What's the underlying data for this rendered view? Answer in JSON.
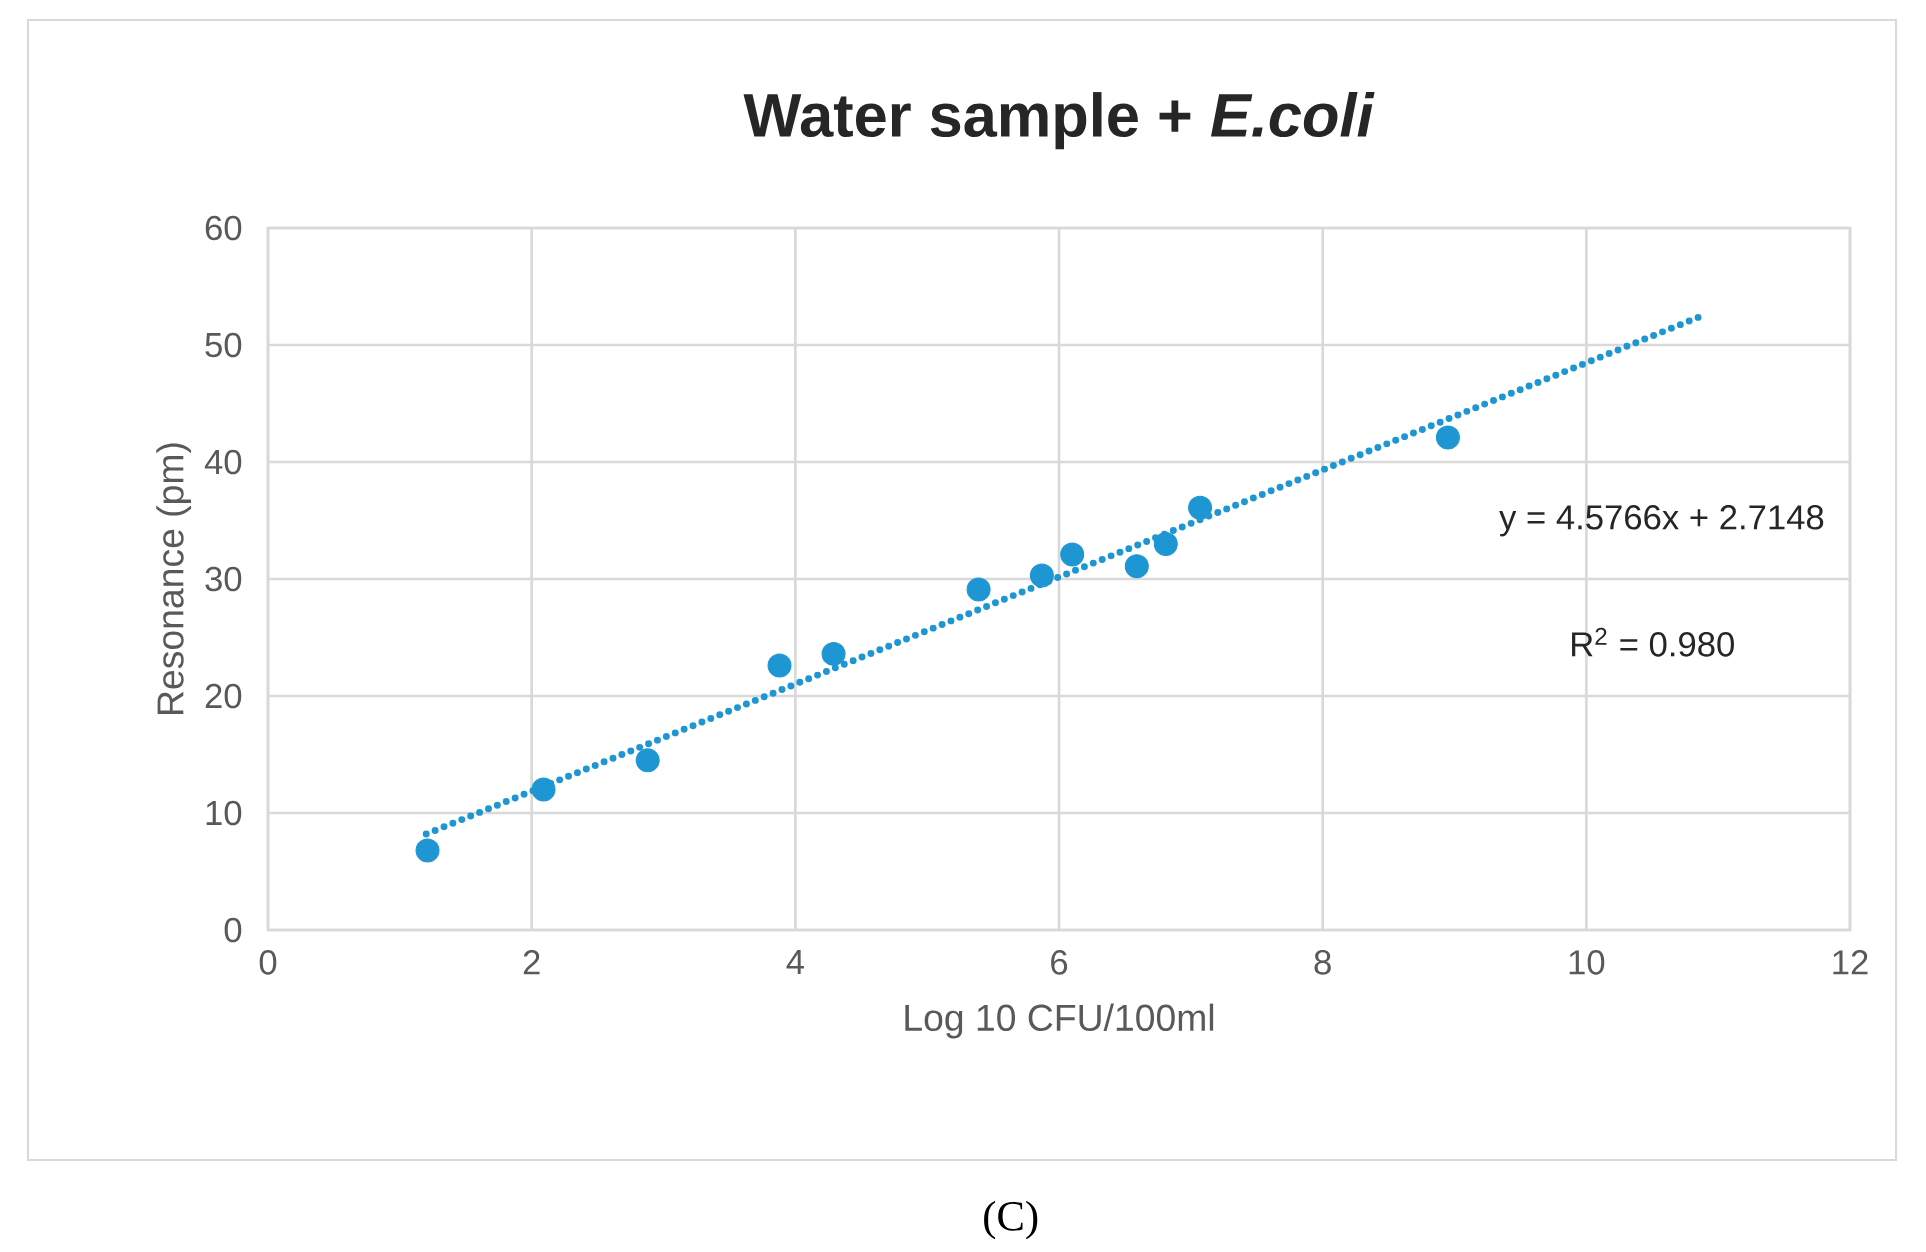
{
  "chart_data": {
    "type": "scatter",
    "title": "Water sample + *E.coli*",
    "xlabel": "Log 10 CFU/100ml",
    "ylabel": "Resonance (pm)",
    "xlim": [
      0,
      12
    ],
    "xticks": [
      0,
      2,
      4,
      6,
      8,
      10,
      12
    ],
    "ylim": [
      0,
      60
    ],
    "yticks": [
      0,
      10,
      20,
      30,
      40,
      50,
      60
    ],
    "grid": true,
    "series": [
      {
        "marker": "circle",
        "color": "#1f96d4",
        "x": [
          1.21,
          2.09,
          2.88,
          3.88,
          4.29,
          5.39,
          5.87,
          6.1,
          6.59,
          6.81,
          7.07,
          8.95
        ],
        "values": [
          6.8,
          12.0,
          14.5,
          22.6,
          23.6,
          29.1,
          30.3,
          32.1,
          31.1,
          33.0,
          36.1,
          42.1
        ]
      },
      {
        "type": "line",
        "marker": "none",
        "line_style": "dotted",
        "color": "#1f96d4",
        "x": [
          1.2,
          10.9
        ],
        "values": [
          8.2,
          52.6
        ]
      }
    ],
    "annotations": [
      "y = 4.5766x + 2.7148",
      "R$^{2}$ = 0.980",
      "(C)"
    ]
  }
}
